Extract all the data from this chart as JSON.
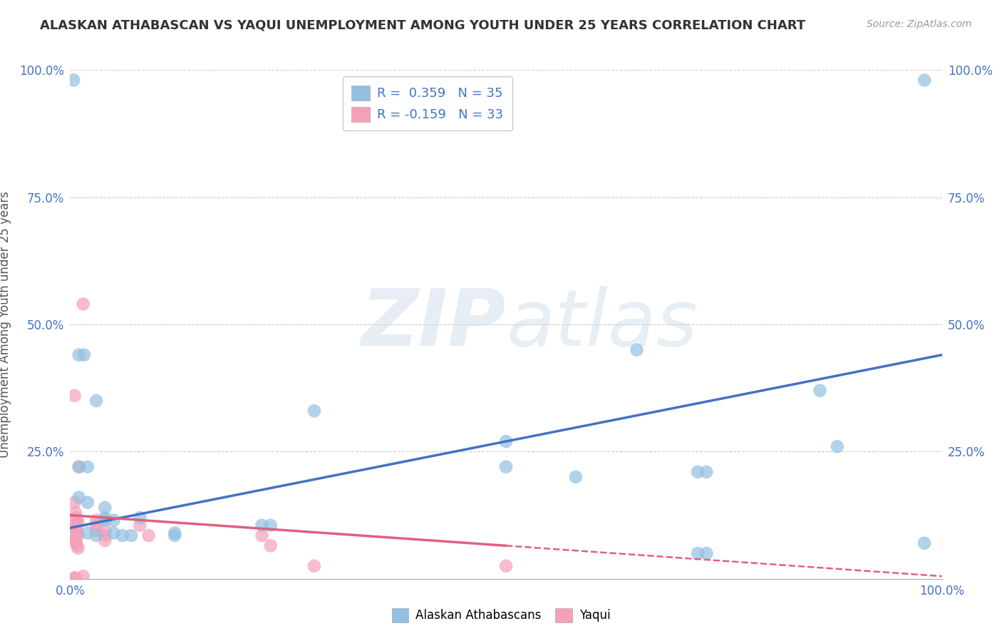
{
  "title": "ALASKAN ATHABASCAN VS YAQUI UNEMPLOYMENT AMONG YOUTH UNDER 25 YEARS CORRELATION CHART",
  "source": "Source: ZipAtlas.com",
  "ylabel": "Unemployment Among Youth under 25 years",
  "xlim": [
    0,
    1.0
  ],
  "ylim": [
    0,
    1.0
  ],
  "legend_blue_r": "0.359",
  "legend_blue_n": "35",
  "legend_pink_r": "-0.159",
  "legend_pink_n": "33",
  "blue_color": "#92C0E0",
  "pink_color": "#F4A0B8",
  "blue_line_color": "#4472C4",
  "pink_line_color": "#E06080",
  "blue_scatter": [
    [
      0.004,
      0.98
    ],
    [
      0.98,
      0.98
    ],
    [
      0.65,
      0.45
    ],
    [
      0.01,
      0.44
    ],
    [
      0.016,
      0.44
    ],
    [
      0.03,
      0.35
    ],
    [
      0.28,
      0.33
    ],
    [
      0.5,
      0.27
    ],
    [
      0.5,
      0.22
    ],
    [
      0.58,
      0.2
    ],
    [
      0.72,
      0.21
    ],
    [
      0.73,
      0.21
    ],
    [
      0.86,
      0.37
    ],
    [
      0.88,
      0.26
    ],
    [
      0.98,
      0.07
    ],
    [
      0.72,
      0.05
    ],
    [
      0.73,
      0.05
    ],
    [
      0.01,
      0.22
    ],
    [
      0.02,
      0.22
    ],
    [
      0.01,
      0.16
    ],
    [
      0.02,
      0.15
    ],
    [
      0.04,
      0.14
    ],
    [
      0.04,
      0.12
    ],
    [
      0.04,
      0.115
    ],
    [
      0.05,
      0.115
    ],
    [
      0.02,
      0.09
    ],
    [
      0.05,
      0.09
    ],
    [
      0.03,
      0.085
    ],
    [
      0.06,
      0.085
    ],
    [
      0.07,
      0.085
    ],
    [
      0.08,
      0.12
    ],
    [
      0.12,
      0.09
    ],
    [
      0.12,
      0.085
    ],
    [
      0.22,
      0.105
    ],
    [
      0.23,
      0.105
    ]
  ],
  "pink_scatter": [
    [
      0.015,
      0.54
    ],
    [
      0.005,
      0.36
    ],
    [
      0.01,
      0.22
    ],
    [
      0.005,
      0.15
    ],
    [
      0.006,
      0.13
    ],
    [
      0.007,
      0.12
    ],
    [
      0.008,
      0.115
    ],
    [
      0.009,
      0.11
    ],
    [
      0.005,
      0.105
    ],
    [
      0.006,
      0.1
    ],
    [
      0.007,
      0.095
    ],
    [
      0.008,
      0.09
    ],
    [
      0.009,
      0.085
    ],
    [
      0.005,
      0.08
    ],
    [
      0.006,
      0.075
    ],
    [
      0.007,
      0.07
    ],
    [
      0.008,
      0.065
    ],
    [
      0.009,
      0.06
    ],
    [
      0.03,
      0.115
    ],
    [
      0.03,
      0.105
    ],
    [
      0.03,
      0.095
    ],
    [
      0.04,
      0.095
    ],
    [
      0.04,
      0.085
    ],
    [
      0.04,
      0.075
    ],
    [
      0.08,
      0.105
    ],
    [
      0.09,
      0.085
    ],
    [
      0.22,
      0.085
    ],
    [
      0.23,
      0.065
    ],
    [
      0.28,
      0.025
    ],
    [
      0.5,
      0.025
    ],
    [
      0.015,
      0.005
    ],
    [
      0.005,
      0.002
    ],
    [
      0.006,
      0.001
    ]
  ],
  "blue_trendline": [
    [
      0.0,
      0.1
    ],
    [
      1.0,
      0.44
    ]
  ],
  "pink_trendline_solid": [
    [
      0.0,
      0.125
    ],
    [
      0.5,
      0.065
    ]
  ],
  "pink_trendline_dashed": [
    [
      0.5,
      0.065
    ],
    [
      1.0,
      0.005
    ]
  ],
  "background_color": "#ffffff",
  "grid_color": "#cccccc",
  "title_color": "#333333",
  "axis_color": "#4472C4",
  "ylabel_color": "#555555"
}
